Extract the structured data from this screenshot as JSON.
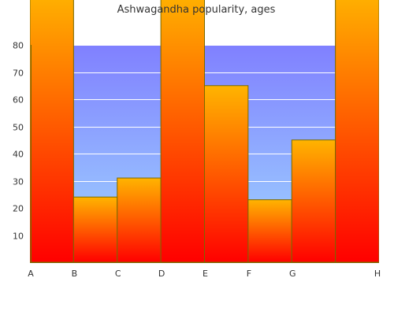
{
  "chart_data": {
    "type": "area",
    "title": "Ashwagandha popularity, ages",
    "x_ticks": [
      "A",
      "B",
      "C",
      "D",
      "E",
      "F",
      "G",
      "H"
    ],
    "y_ticks": [
      "10",
      "20",
      "30",
      "40",
      "50",
      "60",
      "70",
      "80"
    ],
    "ylim": [
      0,
      80
    ],
    "series": [
      {
        "values": [
          100,
          24,
          31,
          100,
          65,
          23,
          45,
          100
        ]
      }
    ],
    "grid": true,
    "background_gradient": [
      "#8080ff",
      "#a0d8ff"
    ],
    "fill_gradient": [
      "#ffb400",
      "#ff0000"
    ]
  }
}
